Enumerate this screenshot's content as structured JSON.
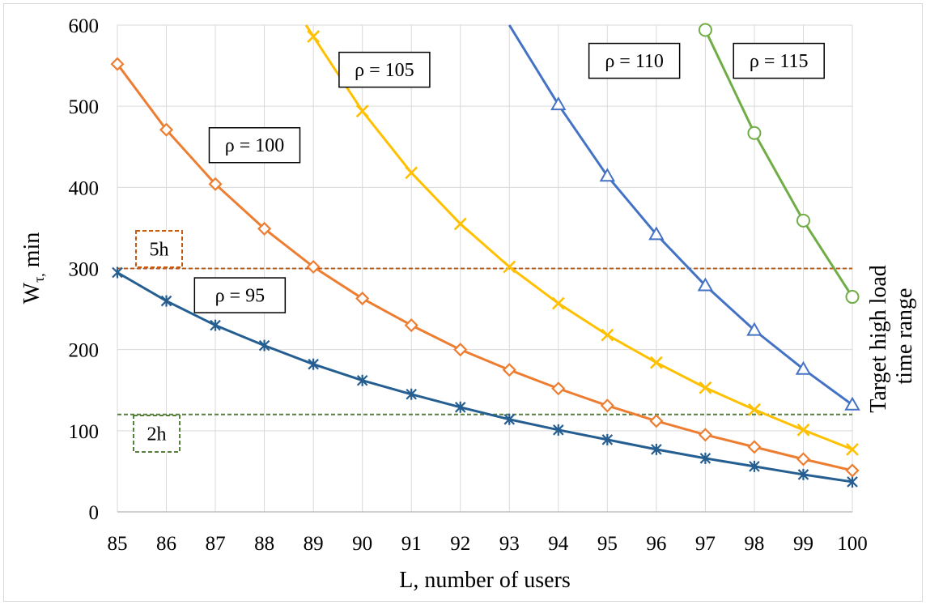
{
  "chart_data": {
    "type": "line",
    "xlabel": "L, number of users",
    "ylabel_main": "W",
    "ylabel_sub": "τ,",
    "ylabel_suffix": " min",
    "right_label_line1": "Target high load",
    "right_label_line2": "time range",
    "xlim": [
      85,
      100
    ],
    "ylim": [
      0,
      600
    ],
    "x_ticks": [
      85,
      86,
      87,
      88,
      89,
      90,
      91,
      92,
      93,
      94,
      95,
      96,
      97,
      98,
      99,
      100
    ],
    "y_ticks": [
      0,
      100,
      200,
      300,
      400,
      500,
      600
    ],
    "grid": true,
    "series": [
      {
        "name": "ρ = 95",
        "color": "#255e91",
        "marker": "asterisk",
        "x": [
          85,
          86,
          87,
          88,
          89,
          90,
          91,
          92,
          93,
          94,
          95,
          96,
          97,
          98,
          99,
          100
        ],
        "values": [
          295,
          260,
          230,
          205,
          182,
          162,
          145,
          129,
          114,
          101,
          89,
          77,
          66,
          56,
          46,
          37
        ]
      },
      {
        "name": "ρ = 100",
        "color": "#ed7d31",
        "marker": "diamond",
        "x": [
          85,
          86,
          87,
          88,
          89,
          90,
          91,
          92,
          93,
          94,
          95,
          96,
          97,
          98,
          99,
          100
        ],
        "values": [
          552,
          471,
          404,
          349,
          302,
          263,
          230,
          200,
          175,
          152,
          131,
          112,
          95,
          80,
          65,
          51
        ]
      },
      {
        "name": "ρ = 105",
        "color": "#ffc000",
        "marker": "x",
        "x": [
          88.85,
          89,
          90,
          91,
          92,
          93,
          94,
          95,
          96,
          97,
          98,
          99,
          100
        ],
        "values": [
          600,
          586,
          494,
          418,
          355,
          302,
          257,
          218,
          184,
          153,
          126,
          101,
          77
        ],
        "marker_from_index": 1
      },
      {
        "name": "ρ = 110",
        "color": "#4472c4",
        "marker": "triangle",
        "x": [
          93,
          94,
          95,
          96,
          97,
          98,
          99,
          100
        ],
        "values": [
          600,
          502,
          414,
          342,
          279,
          224,
          176,
          132
        ],
        "marker_from_index": 1
      },
      {
        "name": "ρ = 115",
        "color": "#70ad47",
        "marker": "circle",
        "x": [
          97,
          98,
          99,
          100
        ],
        "values": [
          594,
          467,
          359,
          265
        ]
      }
    ],
    "reference_lines": [
      {
        "label": "5h",
        "value": 300,
        "color": "#c55a11"
      },
      {
        "label": "2h",
        "value": 120,
        "color": "#548235"
      }
    ],
    "annotations": [
      {
        "text": "ρ = 95",
        "x": 87.5,
        "y": 267
      },
      {
        "text": "ρ = 100",
        "x": 87.8,
        "y": 452
      },
      {
        "text": "ρ = 105",
        "x": 90.45,
        "y": 545
      },
      {
        "text": "ρ = 110",
        "x": 95.55,
        "y": 556
      },
      {
        "text": "ρ = 115",
        "x": 98.5,
        "y": 556
      }
    ]
  }
}
